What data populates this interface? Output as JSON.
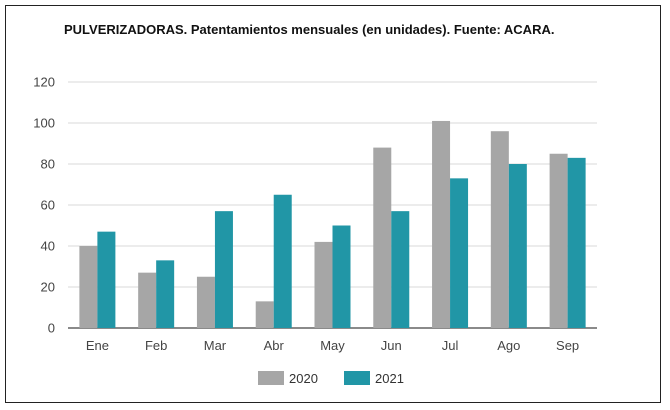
{
  "chart_data": {
    "type": "bar",
    "title": "PULVERIZADORAS. Patentamientos mensuales (en unidades). Fuente: ACARA.",
    "categories": [
      "Ene",
      "Feb",
      "Mar",
      "Abr",
      "May",
      "Jun",
      "Jul",
      "Ago",
      "Sep"
    ],
    "series": [
      {
        "name": "2020",
        "color": "#a6a6a6",
        "values": [
          40,
          27,
          25,
          13,
          42,
          88,
          101,
          96,
          85
        ]
      },
      {
        "name": "2021",
        "color": "#2196a6",
        "values": [
          47,
          33,
          57,
          65,
          50,
          57,
          73,
          80,
          83
        ]
      }
    ],
    "ylim": [
      0,
      120
    ],
    "yticks": [
      "0",
      "20",
      "40",
      "60",
      "80",
      "100",
      "120"
    ],
    "grid": true,
    "legend": "bottom",
    "xlabel": "",
    "ylabel": ""
  }
}
